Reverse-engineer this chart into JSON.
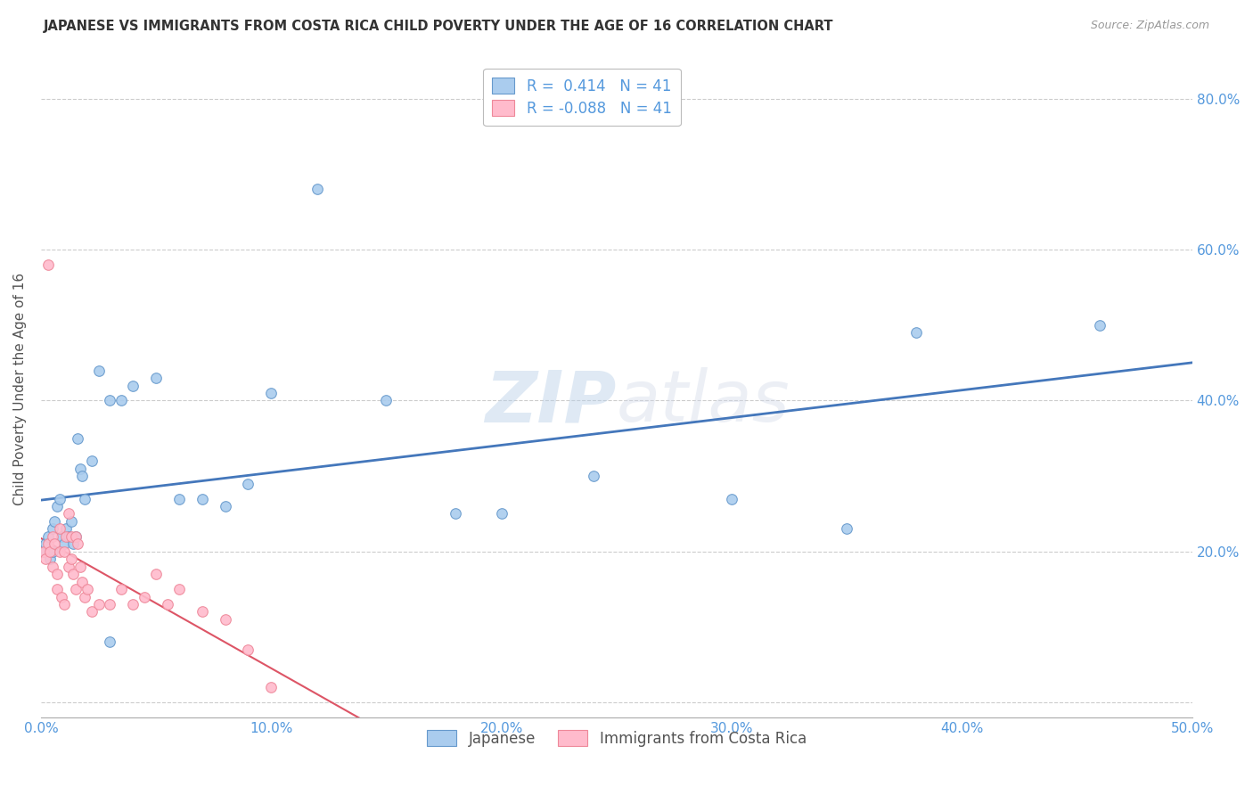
{
  "title": "JAPANESE VS IMMIGRANTS FROM COSTA RICA CHILD POVERTY UNDER THE AGE OF 16 CORRELATION CHART",
  "source": "Source: ZipAtlas.com",
  "ylabel_label": "Child Poverty Under the Age of 16",
  "xlim": [
    0.0,
    0.5
  ],
  "ylim": [
    -0.02,
    0.85
  ],
  "plot_ylim": [
    0.0,
    0.85
  ],
  "xticks": [
    0.0,
    0.1,
    0.2,
    0.3,
    0.4,
    0.5
  ],
  "yticks": [
    0.0,
    0.2,
    0.4,
    0.6,
    0.8
  ],
  "xtick_labels": [
    "0.0%",
    "10.0%",
    "20.0%",
    "30.0%",
    "40.0%",
    "50.0%"
  ],
  "ytick_labels_left": [
    "",
    "",
    "",
    "",
    ""
  ],
  "ytick_labels_right": [
    "",
    "20.0%",
    "40.0%",
    "60.0%",
    "80.0%"
  ],
  "background_color": "#ffffff",
  "grid_color": "#cccccc",
  "blue_color": "#aaccee",
  "pink_color": "#ffbbcc",
  "blue_edge_color": "#6699cc",
  "pink_edge_color": "#ee8899",
  "blue_line_color": "#4477bb",
  "pink_line_color": "#dd5566",
  "tick_color": "#5599dd",
  "r_blue": 0.414,
  "r_pink": -0.088,
  "n_blue": 41,
  "n_pink": 41,
  "watermark_zip": "ZIP",
  "watermark_atlas": "atlas",
  "japanese_x": [
    0.001,
    0.002,
    0.003,
    0.004,
    0.005,
    0.005,
    0.006,
    0.007,
    0.008,
    0.009,
    0.01,
    0.011,
    0.012,
    0.013,
    0.014,
    0.015,
    0.016,
    0.017,
    0.018,
    0.019,
    0.022,
    0.025,
    0.03,
    0.035,
    0.04,
    0.05,
    0.06,
    0.07,
    0.08,
    0.09,
    0.1,
    0.12,
    0.15,
    0.18,
    0.2,
    0.24,
    0.3,
    0.35,
    0.38,
    0.46,
    0.03
  ],
  "japanese_y": [
    0.2,
    0.21,
    0.22,
    0.19,
    0.23,
    0.2,
    0.24,
    0.26,
    0.27,
    0.22,
    0.21,
    0.23,
    0.22,
    0.24,
    0.21,
    0.22,
    0.35,
    0.31,
    0.3,
    0.27,
    0.32,
    0.44,
    0.4,
    0.4,
    0.42,
    0.43,
    0.27,
    0.27,
    0.26,
    0.29,
    0.41,
    0.68,
    0.4,
    0.25,
    0.25,
    0.3,
    0.27,
    0.23,
    0.49,
    0.5,
    0.08
  ],
  "costa_rica_x": [
    0.001,
    0.002,
    0.003,
    0.003,
    0.004,
    0.005,
    0.005,
    0.006,
    0.007,
    0.007,
    0.008,
    0.008,
    0.009,
    0.01,
    0.01,
    0.011,
    0.012,
    0.012,
    0.013,
    0.013,
    0.014,
    0.015,
    0.015,
    0.016,
    0.017,
    0.018,
    0.019,
    0.02,
    0.022,
    0.025,
    0.03,
    0.035,
    0.04,
    0.045,
    0.05,
    0.055,
    0.06,
    0.07,
    0.08,
    0.09,
    0.1
  ],
  "costa_rica_y": [
    0.2,
    0.19,
    0.58,
    0.21,
    0.2,
    0.22,
    0.18,
    0.21,
    0.15,
    0.17,
    0.23,
    0.2,
    0.14,
    0.2,
    0.13,
    0.22,
    0.25,
    0.18,
    0.19,
    0.22,
    0.17,
    0.22,
    0.15,
    0.21,
    0.18,
    0.16,
    0.14,
    0.15,
    0.12,
    0.13,
    0.13,
    0.15,
    0.13,
    0.14,
    0.17,
    0.13,
    0.15,
    0.12,
    0.11,
    0.07,
    0.02
  ]
}
